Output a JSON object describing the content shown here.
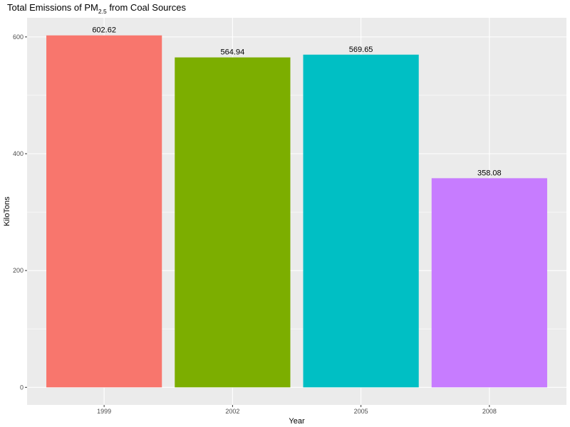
{
  "chart_data": {
    "type": "bar",
    "title": {
      "prefix": "Total Emissions of PM",
      "subscript": "2.5",
      "suffix": " from Coal Sources"
    },
    "xlabel": "Year",
    "ylabel": "KiloTons",
    "categories": [
      "1999",
      "2002",
      "2005",
      "2008"
    ],
    "values": [
      602.62,
      564.94,
      569.65,
      358.08
    ],
    "data_labels": [
      "602.62",
      "564.94",
      "569.65",
      "358.08"
    ],
    "bar_colors": [
      "#F8766D",
      "#7CAE00",
      "#00BFC4",
      "#C77CFF"
    ],
    "ylim": [
      -30.13,
      632.75
    ],
    "y_ticks": [
      0,
      200,
      400,
      600
    ],
    "y_tick_labels": [
      "0",
      "200",
      "400",
      "600"
    ],
    "grid": true,
    "legend": "none",
    "panel_background": "#EBEBEB",
    "grid_color": "#FFFFFF"
  }
}
